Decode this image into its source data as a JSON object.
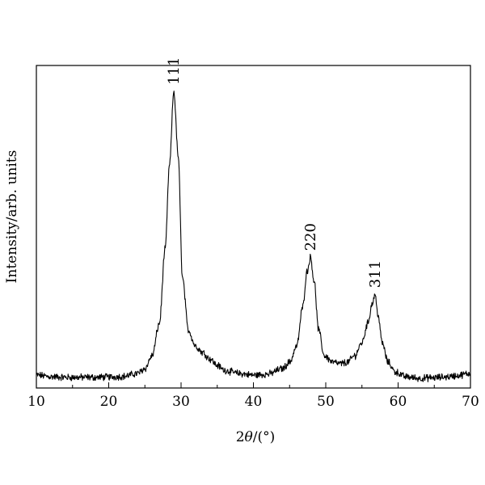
{
  "chart_data": {
    "type": "line",
    "xlabel_prefix": "2",
    "xlabel_var": "θ",
    "xlabel_unit": "/(°)",
    "ylabel": "Intensity/arb. units",
    "xlim": [
      10,
      70
    ],
    "ylim": [
      0,
      1
    ],
    "x_ticks": [
      10,
      20,
      30,
      40,
      50,
      60,
      70
    ],
    "y_ticks_shown": false,
    "grid": false,
    "line_color": "#000000",
    "series": [
      {
        "values_description_free": true,
        "x": [
          10,
          12,
          14,
          16,
          18,
          20,
          22,
          24,
          25,
          26,
          27,
          27.8,
          28.4,
          29.0,
          29.6,
          30.2,
          31,
          32,
          33,
          34,
          35,
          36,
          38,
          40,
          42,
          44,
          45,
          46,
          46.8,
          47.4,
          47.9,
          48.4,
          49.0,
          49.8,
          51,
          52,
          53,
          54,
          55,
          55.8,
          56.4,
          56.8,
          57.2,
          57.8,
          58.6,
          59.6,
          61,
          63,
          65,
          67,
          68,
          70
        ],
        "y": [
          0.04,
          0.035,
          0.033,
          0.033,
          0.033,
          0.034,
          0.036,
          0.045,
          0.06,
          0.1,
          0.2,
          0.43,
          0.69,
          0.92,
          0.72,
          0.34,
          0.18,
          0.13,
          0.11,
          0.09,
          0.07,
          0.055,
          0.045,
          0.04,
          0.043,
          0.06,
          0.08,
          0.13,
          0.25,
          0.36,
          0.405,
          0.33,
          0.18,
          0.1,
          0.08,
          0.075,
          0.08,
          0.1,
          0.14,
          0.2,
          0.26,
          0.29,
          0.23,
          0.14,
          0.08,
          0.05,
          0.035,
          0.03,
          0.032,
          0.035,
          0.038,
          0.045
        ]
      }
    ],
    "annotations": [
      {
        "text": "111",
        "x": 29.0,
        "y": 0.92
      },
      {
        "text": "220",
        "x": 47.9,
        "y": 0.405
      },
      {
        "text": "311",
        "x": 56.8,
        "y": 0.29
      }
    ]
  }
}
